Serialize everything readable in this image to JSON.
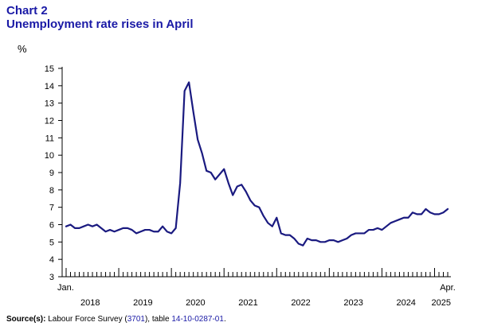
{
  "title": "Chart 2",
  "subtitle": "Unemployment rate rises in April",
  "unit": "%",
  "source": {
    "label": "Source(s):",
    "text1": " Labour Force Survey (",
    "link1": "3701",
    "text2": "), table ",
    "link2": "14-10-0287-01",
    "text3": "."
  },
  "colors": {
    "title": "#1a1aa6",
    "line": "#1a1a80"
  },
  "chart_data": {
    "type": "line",
    "ylim": [
      3,
      15
    ],
    "yticks": [
      3,
      4,
      5,
      6,
      7,
      8,
      9,
      10,
      11,
      12,
      13,
      14,
      15
    ],
    "grid": false,
    "first_period": "2018-01",
    "last_period": "2025-04",
    "x_start_label": "Jan.",
    "x_end_label": "Apr.",
    "year_labels": [
      "2018",
      "2019",
      "2020",
      "2021",
      "2022",
      "2023",
      "2024",
      "2025"
    ],
    "series": [
      {
        "x": [
          "2018-01",
          "2018-02",
          "2018-03",
          "2018-04",
          "2018-05",
          "2018-06",
          "2018-07",
          "2018-08",
          "2018-09",
          "2018-10",
          "2018-11",
          "2018-12",
          "2019-01",
          "2019-02",
          "2019-03",
          "2019-04",
          "2019-05",
          "2019-06",
          "2019-07",
          "2019-08",
          "2019-09",
          "2019-10",
          "2019-11",
          "2019-12",
          "2020-01",
          "2020-02",
          "2020-03",
          "2020-04",
          "2020-05",
          "2020-06",
          "2020-07",
          "2020-08",
          "2020-09",
          "2020-10",
          "2020-11",
          "2020-12",
          "2021-01",
          "2021-02",
          "2021-03",
          "2021-04",
          "2021-05",
          "2021-06",
          "2021-07",
          "2021-08",
          "2021-09",
          "2021-10",
          "2021-11",
          "2021-12",
          "2022-01",
          "2022-02",
          "2022-03",
          "2022-04",
          "2022-05",
          "2022-06",
          "2022-07",
          "2022-08",
          "2022-09",
          "2022-10",
          "2022-11",
          "2022-12",
          "2023-01",
          "2023-02",
          "2023-03",
          "2023-04",
          "2023-05",
          "2023-06",
          "2023-07",
          "2023-08",
          "2023-09",
          "2023-10",
          "2023-11",
          "2023-12",
          "2024-01",
          "2024-02",
          "2024-03",
          "2024-04",
          "2024-05",
          "2024-06",
          "2024-07",
          "2024-08",
          "2024-09",
          "2024-10",
          "2024-11",
          "2024-12",
          "2025-01",
          "2025-02",
          "2025-03",
          "2025-04"
        ],
        "values": [
          5.9,
          6.0,
          5.8,
          5.8,
          5.9,
          6.0,
          5.9,
          6.0,
          5.8,
          5.6,
          5.7,
          5.6,
          5.7,
          5.8,
          5.8,
          5.7,
          5.5,
          5.6,
          5.7,
          5.7,
          5.6,
          5.6,
          5.9,
          5.6,
          5.5,
          5.8,
          8.4,
          13.7,
          14.2,
          12.5,
          10.9,
          10.1,
          9.1,
          9.0,
          8.6,
          8.9,
          9.2,
          8.4,
          7.7,
          8.2,
          8.3,
          7.9,
          7.4,
          7.1,
          7.0,
          6.5,
          6.1,
          5.9,
          6.4,
          5.5,
          5.4,
          5.4,
          5.2,
          4.9,
          4.8,
          5.2,
          5.1,
          5.1,
          5.0,
          5.0,
          5.1,
          5.1,
          5.0,
          5.1,
          5.2,
          5.4,
          5.5,
          5.5,
          5.5,
          5.7,
          5.7,
          5.8,
          5.7,
          5.9,
          6.1,
          6.2,
          6.3,
          6.4,
          6.4,
          6.7,
          6.6,
          6.6,
          6.9,
          6.7,
          6.6,
          6.6,
          6.7,
          6.9
        ]
      }
    ]
  }
}
